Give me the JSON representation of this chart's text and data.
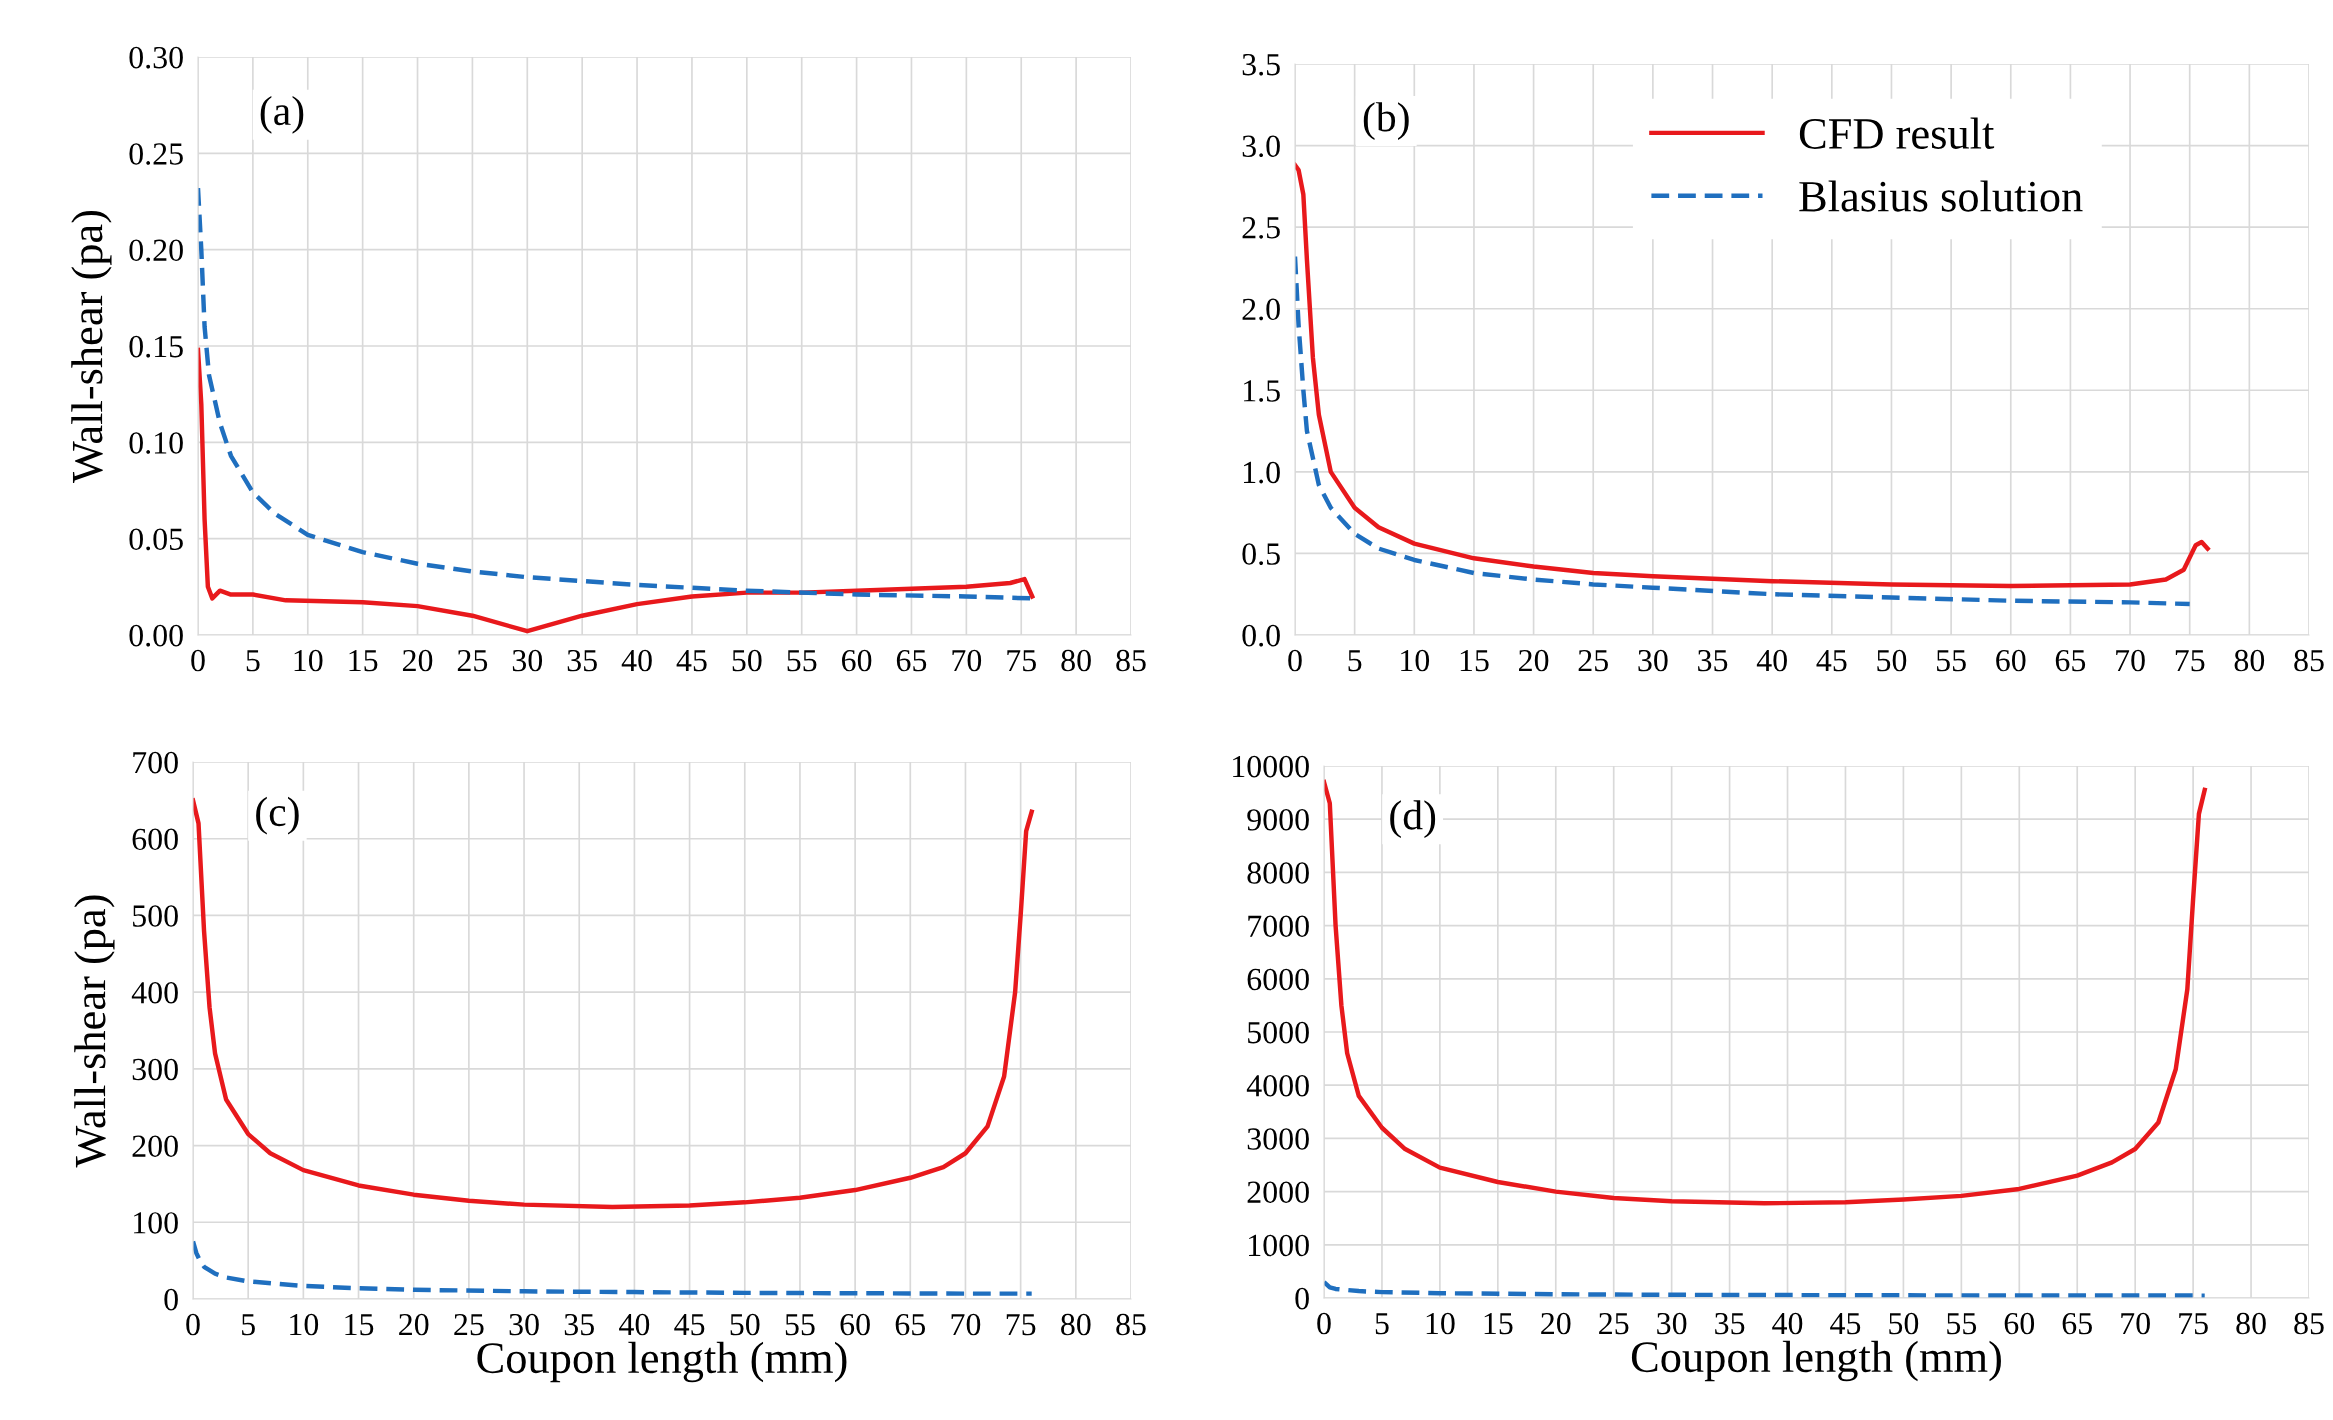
{
  "chart_data": [
    {
      "type": "line",
      "ylabel": "Wall-shear (pa)",
      "annotations": [
        "(a)"
      ],
      "xlim": [
        0,
        85
      ],
      "xticks": [
        0,
        5,
        10,
        15,
        20,
        25,
        30,
        35,
        40,
        45,
        50,
        55,
        60,
        65,
        70,
        75,
        80,
        85
      ],
      "ylim": [
        0,
        0.3
      ],
      "yticks": [
        {
          "value": 0,
          "label": "0.00"
        },
        {
          "value": 0.05,
          "label": "0.05"
        },
        {
          "value": 0.1,
          "label": "0.10"
        },
        {
          "value": 0.15,
          "label": "0.15"
        },
        {
          "value": 0.2,
          "label": "0.20"
        },
        {
          "value": 0.25,
          "label": "0.25"
        },
        {
          "value": 0.3,
          "label": "0.30"
        }
      ],
      "grid": true,
      "legend": false,
      "series": [
        {
          "color": "#e8191c",
          "line_style": "solid",
          "x": [
            0,
            0.3,
            0.6,
            0.9,
            1.3,
            2,
            3,
            5,
            8,
            15,
            20,
            25,
            30,
            35,
            40,
            45,
            50,
            55,
            60,
            65,
            70,
            74,
            75.3,
            76
          ],
          "values": [
            0.148,
            0.12,
            0.06,
            0.025,
            0.019,
            0.023,
            0.021,
            0.021,
            0.018,
            0.017,
            0.015,
            0.01,
            0.002,
            0.01,
            0.016,
            0.02,
            0.022,
            0.022,
            0.023,
            0.024,
            0.025,
            0.027,
            0.029,
            0.02
          ]
        },
        {
          "color": "#1f6fbf",
          "line_style": "dashed",
          "x": [
            0,
            0.3,
            0.6,
            1,
            2,
            3,
            5,
            7,
            10,
            15,
            20,
            25,
            30,
            40,
            50,
            60,
            70,
            76
          ],
          "values": [
            0.232,
            0.2,
            0.16,
            0.135,
            0.11,
            0.093,
            0.074,
            0.063,
            0.052,
            0.043,
            0.037,
            0.033,
            0.03,
            0.026,
            0.023,
            0.021,
            0.02,
            0.019
          ]
        }
      ]
    },
    {
      "type": "line",
      "annotations": [
        "(b)"
      ],
      "xlim": [
        0,
        85
      ],
      "xticks": [
        0,
        5,
        10,
        15,
        20,
        25,
        30,
        35,
        40,
        45,
        50,
        55,
        60,
        65,
        70,
        75,
        80,
        85
      ],
      "ylim": [
        0,
        3.5
      ],
      "yticks": [
        {
          "value": 0,
          "label": "0.0"
        },
        {
          "value": 0.5,
          "label": "0.5"
        },
        {
          "value": 1,
          "label": "1.0"
        },
        {
          "value": 1.5,
          "label": "1.5"
        },
        {
          "value": 2,
          "label": "2.0"
        },
        {
          "value": 2.5,
          "label": "2.5"
        },
        {
          "value": 3,
          "label": "3.0"
        },
        {
          "value": 3.5,
          "label": "3.5"
        }
      ],
      "grid": true,
      "legend": "top right",
      "series": [
        {
          "name": "CFD result",
          "color": "#e8191c",
          "line_style": "solid",
          "x": [
            0,
            0.3,
            0.7,
            1,
            1.5,
            2,
            3,
            5,
            7,
            10,
            15,
            20,
            25,
            30,
            40,
            50,
            60,
            70,
            73,
            74.5,
            75.5,
            76,
            76.5
          ],
          "values": [
            2.88,
            2.85,
            2.7,
            2.3,
            1.7,
            1.35,
            1.0,
            0.78,
            0.66,
            0.56,
            0.47,
            0.42,
            0.38,
            0.36,
            0.33,
            0.31,
            0.3,
            0.31,
            0.34,
            0.4,
            0.55,
            0.57,
            0.53
          ]
        },
        {
          "name": "Blasius solution",
          "color": "#1f6fbf",
          "line_style": "dashed",
          "x": [
            0,
            0.3,
            0.7,
            1,
            2,
            3,
            5,
            7,
            10,
            15,
            20,
            25,
            30,
            40,
            50,
            60,
            70,
            75
          ],
          "values": [
            2.32,
            1.9,
            1.5,
            1.25,
            0.92,
            0.78,
            0.62,
            0.53,
            0.46,
            0.38,
            0.34,
            0.31,
            0.29,
            0.25,
            0.23,
            0.21,
            0.2,
            0.19
          ]
        }
      ]
    },
    {
      "type": "line",
      "xlabel": "Coupon length (mm)",
      "ylabel": "Wall-shear (pa)",
      "annotations": [
        "(c)"
      ],
      "xlim": [
        0,
        85
      ],
      "xticks": [
        0,
        5,
        10,
        15,
        20,
        25,
        30,
        35,
        40,
        45,
        50,
        55,
        60,
        65,
        70,
        75,
        80,
        85
      ],
      "ylim": [
        0,
        700
      ],
      "yticks": [
        0,
        100,
        200,
        300,
        400,
        500,
        600,
        700
      ],
      "grid": true,
      "legend": false,
      "series": [
        {
          "color": "#e8191c",
          "line_style": "solid",
          "x": [
            0,
            0.5,
            1,
            1.5,
            2,
            3,
            5,
            7,
            10,
            15,
            20,
            25,
            30,
            38,
            45,
            50,
            55,
            60,
            65,
            68,
            70,
            72,
            73.5,
            74.5,
            75,
            75.5,
            76
          ],
          "values": [
            650,
            620,
            480,
            380,
            320,
            260,
            215,
            190,
            168,
            148,
            136,
            128,
            123,
            120,
            122,
            126,
            132,
            142,
            158,
            172,
            190,
            225,
            290,
            400,
            500,
            610,
            635
          ]
        },
        {
          "color": "#1f6fbf",
          "line_style": "dashed",
          "x": [
            0,
            0.3,
            0.7,
            1,
            2,
            3,
            5,
            10,
            15,
            20,
            30,
            40,
            50,
            60,
            70,
            76
          ],
          "values": [
            75,
            60,
            48,
            42,
            33,
            28,
            23,
            17,
            14,
            12,
            10,
            9,
            8,
            7.5,
            7,
            7
          ]
        }
      ]
    },
    {
      "type": "line",
      "xlabel": "Coupon length (mm)",
      "annotations": [
        "(d)"
      ],
      "xlim": [
        0,
        85
      ],
      "xticks": [
        0,
        5,
        10,
        15,
        20,
        25,
        30,
        35,
        40,
        45,
        50,
        55,
        60,
        65,
        70,
        75,
        80,
        85
      ],
      "ylim": [
        0,
        10000
      ],
      "yticks": [
        0,
        1000,
        2000,
        3000,
        4000,
        5000,
        6000,
        7000,
        8000,
        9000,
        10000
      ],
      "grid": true,
      "legend": false,
      "series": [
        {
          "color": "#e8191c",
          "line_style": "solid",
          "x": [
            0,
            0.5,
            1,
            1.5,
            2,
            3,
            5,
            7,
            10,
            15,
            20,
            25,
            30,
            38,
            45,
            50,
            55,
            60,
            65,
            68,
            70,
            72,
            73.5,
            74.5,
            75,
            75.5,
            76
          ],
          "values": [
            9700,
            9300,
            7000,
            5500,
            4600,
            3800,
            3200,
            2800,
            2450,
            2180,
            2000,
            1880,
            1820,
            1780,
            1800,
            1850,
            1920,
            2050,
            2300,
            2550,
            2800,
            3300,
            4300,
            5800,
            7500,
            9100,
            9550
          ]
        },
        {
          "color": "#1f6fbf",
          "line_style": "dashed",
          "x": [
            0,
            0.5,
            1,
            3,
            5,
            10,
            20,
            30,
            50,
            76
          ],
          "values": [
            300,
            200,
            170,
            130,
            110,
            90,
            70,
            60,
            50,
            45
          ]
        }
      ]
    }
  ]
}
